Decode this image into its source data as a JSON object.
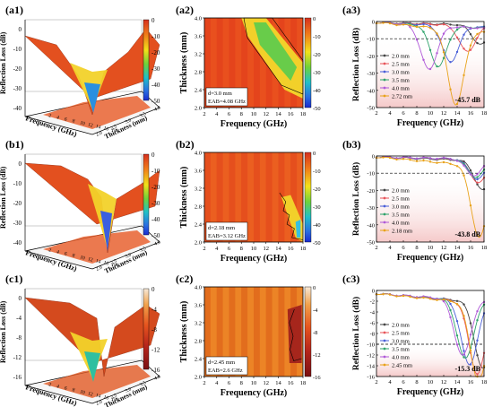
{
  "chart_data": [
    {
      "panel": "(a1)",
      "type": "surface3d",
      "zlabel": "Reflection Loss (dB)",
      "xlabel": "Frequency (GHz)",
      "ylabel": "Thickness (mm)",
      "z_ticks": [
        "0",
        "-10",
        "-20",
        "-30",
        "-40"
      ],
      "colorbar_ticks": [
        "0",
        "-10",
        "-20",
        "-30",
        "-40",
        "-50"
      ],
      "x_ticks": [
        "2",
        "4",
        "6",
        "8",
        "10",
        "12",
        "14",
        "16",
        "18"
      ],
      "y_ticks": [
        "2.0",
        "2.5",
        "3.0",
        "3.5",
        "4.0"
      ]
    },
    {
      "panel": "(a2)",
      "type": "heatmap",
      "xlabel": "Frequency (GHz)",
      "ylabel": "Thickness (mm)",
      "x_ticks": [
        "2",
        "4",
        "6",
        "8",
        "10",
        "12",
        "14",
        "16",
        "18"
      ],
      "y_ticks": [
        "2.0",
        "2.4",
        "2.8",
        "3.2",
        "3.6",
        "4.0"
      ],
      "colorbar_ticks": [
        "0",
        "-10",
        "-20",
        "-30",
        "-40",
        "-50"
      ],
      "annotation": [
        "d=3.0 mm",
        "EAB=4.08 GHz"
      ],
      "ylim": [
        2.0,
        4.0
      ],
      "xlim": [
        2,
        18
      ]
    },
    {
      "panel": "(a3)",
      "type": "line",
      "xlabel": "Frequency (GHz)",
      "ylabel": "Reflection Loss (dB)",
      "x_ticks": [
        "2",
        "4",
        "6",
        "8",
        "10",
        "12",
        "14",
        "16",
        "18"
      ],
      "y_ticks": [
        "0",
        "-10",
        "-20",
        "-30",
        "-40",
        "-50"
      ],
      "ylim": [
        -50,
        0
      ],
      "xlim": [
        2,
        18
      ],
      "threshold": -10,
      "peak_label": "-45.7 dB",
      "series": [
        {
          "name": "2.0 mm",
          "color": "#444444",
          "min_f": 17.5,
          "min_rl": -12
        },
        {
          "name": "2.5 mm",
          "color": "#e8555a",
          "min_f": 15.5,
          "min_rl": -16
        },
        {
          "name": "3.0 mm",
          "color": "#4a5fd8",
          "min_f": 13.0,
          "min_rl": -22
        },
        {
          "name": "3.5 mm",
          "color": "#2fa36b",
          "min_f": 11.2,
          "min_rl": -25
        },
        {
          "name": "4.0 mm",
          "color": "#b05ad8",
          "min_f": 9.8,
          "min_rl": -27
        },
        {
          "name": "2.72 mm",
          "color": "#e8a21a",
          "min_f": 13.8,
          "min_rl": -45.7
        }
      ]
    },
    {
      "panel": "(b1)",
      "type": "surface3d",
      "zlabel": "Reflection Loss (dB)",
      "xlabel": "Frequency (GHz)",
      "ylabel": "Thickness (mm)",
      "z_ticks": [
        "0",
        "-10",
        "-20",
        "-30",
        "-40"
      ],
      "colorbar_ticks": [
        "0",
        "-10",
        "-20",
        "-30",
        "-40",
        "-50"
      ],
      "x_ticks": [
        "2",
        "4",
        "6",
        "8",
        "10",
        "12",
        "14",
        "16",
        "18"
      ],
      "y_ticks": [
        "2.0",
        "2.5",
        "3.0",
        "3.5",
        "4.0"
      ]
    },
    {
      "panel": "(b2)",
      "type": "heatmap",
      "xlabel": "Frequency (GHz)",
      "ylabel": "Thickness (mm)",
      "x_ticks": [
        "2",
        "4",
        "6",
        "8",
        "10",
        "12",
        "14",
        "16",
        "18"
      ],
      "y_ticks": [
        "2.0",
        "2.4",
        "2.8",
        "3.2",
        "3.6",
        "4.0"
      ],
      "colorbar_ticks": [
        "0",
        "-10",
        "-20",
        "-30",
        "-40",
        "-50"
      ],
      "annotation": [
        "d=2.18 mm",
        "EAB=3.12 GHz"
      ],
      "ylim": [
        2.0,
        4.0
      ],
      "xlim": [
        2,
        18
      ]
    },
    {
      "panel": "(b3)",
      "type": "line",
      "xlabel": "Frequency (GHz)",
      "ylabel": "Reflection Loss (dB)",
      "x_ticks": [
        "2",
        "4",
        "6",
        "8",
        "10",
        "12",
        "14",
        "16",
        "18"
      ],
      "y_ticks": [
        "0",
        "-10",
        "-20",
        "-30",
        "-40",
        "-50"
      ],
      "ylim": [
        -50,
        0
      ],
      "xlim": [
        2,
        18
      ],
      "threshold": -10,
      "peak_label": "-43.8 dB",
      "series": [
        {
          "name": "2.0 mm",
          "color": "#444444",
          "min_f": 17.8,
          "min_rl": -18
        },
        {
          "name": "2.5 mm",
          "color": "#e8555a",
          "min_f": 17.2,
          "min_rl": -14
        },
        {
          "name": "3.0 mm",
          "color": "#4a5fd8",
          "min_f": 17.0,
          "min_rl": -12
        },
        {
          "name": "3.5 mm",
          "color": "#2fa36b",
          "min_f": 16.8,
          "min_rl": -11
        },
        {
          "name": "4.0 mm",
          "color": "#b05ad8",
          "min_f": 16.5,
          "min_rl": -10
        },
        {
          "name": "2.18 mm",
          "color": "#e8a21a",
          "min_f": 17.3,
          "min_rl": -43.8
        }
      ]
    },
    {
      "panel": "(c1)",
      "type": "surface3d",
      "zlabel": "Reflection Loss (dB)",
      "xlabel": "Frequency (GHz)",
      "ylabel": "Thickness (mm)",
      "z_ticks": [
        "0",
        "-4",
        "-8",
        "-12",
        "-16"
      ],
      "colorbar_ticks": [
        "0",
        "-4",
        "-8",
        "-12",
        "-16"
      ],
      "x_ticks": [
        "2",
        "4",
        "6",
        "8",
        "10",
        "12",
        "14",
        "16",
        "18"
      ],
      "y_ticks": [
        "2.0",
        "2.5",
        "3.0",
        "3.5",
        "4.0"
      ]
    },
    {
      "panel": "(c2)",
      "type": "heatmap",
      "xlabel": "Frequency (GHz)",
      "ylabel": "Thickness (mm)",
      "x_ticks": [
        "2",
        "4",
        "6",
        "8",
        "10",
        "12",
        "14",
        "16",
        "18"
      ],
      "y_ticks": [
        "2.0",
        "2.4",
        "2.8",
        "3.2",
        "3.6",
        "4.0"
      ],
      "colorbar_ticks": [
        "0",
        "-4",
        "-8",
        "-12",
        "-16"
      ],
      "annotation": [
        "d=2.45 mm",
        "EAB=2.6 GHz"
      ],
      "ylim": [
        2.0,
        4.0
      ],
      "xlim": [
        2,
        18
      ]
    },
    {
      "panel": "(c3)",
      "type": "line",
      "xlabel": "Frequency (GHz)",
      "ylabel": "Reflection Loss (dB)",
      "x_ticks": [
        "2",
        "4",
        "6",
        "8",
        "10",
        "12",
        "14",
        "16",
        "18"
      ],
      "y_ticks": [
        "0",
        "-2",
        "-4",
        "-6",
        "-8",
        "-10",
        "-12",
        "-14",
        "-16"
      ],
      "ylim": [
        -16,
        0
      ],
      "xlim": [
        2,
        18
      ],
      "threshold": -10,
      "peak_label": "-15.3 dB",
      "series": [
        {
          "name": "2.0 mm",
          "color": "#444444",
          "min_f": 17.8,
          "min_rl": -13
        },
        {
          "name": "2.5 mm",
          "color": "#e8555a",
          "min_f": 17.0,
          "min_rl": -14
        },
        {
          "name": "3.0 mm",
          "color": "#4a5fd8",
          "min_f": 15.8,
          "min_rl": -12.5
        },
        {
          "name": "3.5 mm",
          "color": "#2fa36b",
          "min_f": 15.2,
          "min_rl": -11.5
        },
        {
          "name": "4.0 mm",
          "color": "#b05ad8",
          "min_f": 14.8,
          "min_rl": -11
        },
        {
          "name": "2.45 mm",
          "color": "#e8a21a",
          "min_f": 17.2,
          "min_rl": -15.3
        }
      ]
    }
  ]
}
